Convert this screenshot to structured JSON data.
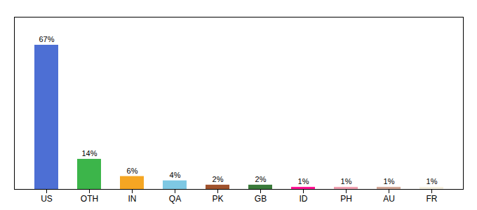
{
  "chart_data": {
    "type": "bar",
    "categories": [
      "US",
      "OTH",
      "IN",
      "QA",
      "PK",
      "GB",
      "ID",
      "PH",
      "AU",
      "FR"
    ],
    "values": [
      67,
      14,
      6,
      4,
      2,
      2,
      1,
      1,
      1,
      1
    ],
    "value_labels": [
      "67%",
      "14%",
      "6%",
      "4%",
      "2%",
      "2%",
      "1%",
      "1%",
      "1%",
      "1%"
    ],
    "colors": [
      "#4d6fd4",
      "#3cb54a",
      "#f5a623",
      "#7ec8e3",
      "#a0522d",
      "#3a7a3a",
      "#ff1493",
      "#f0a0b0",
      "#d2a898",
      "#f5f0e0"
    ],
    "ylim": [
      0,
      80
    ],
    "data_labels": true,
    "tick_labels": "x",
    "grid": false
  }
}
